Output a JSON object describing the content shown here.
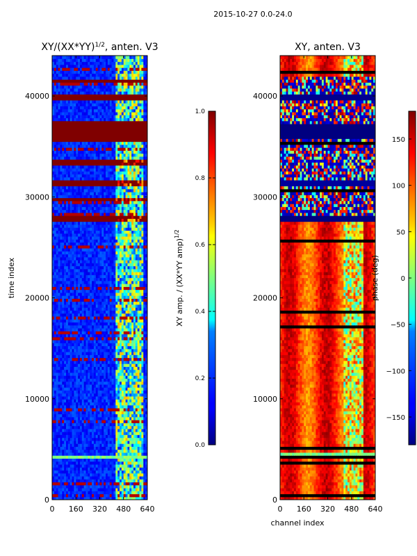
{
  "suptitle": "2015-10-27 0.0-24.0",
  "chart_data": [
    {
      "type": "heatmap",
      "title": "XY/(XX*YY)^1/2, anten. V3",
      "title_main": "XY/(XX*YY)",
      "title_exp": "1/2",
      "title_tail": ", anten. V3",
      "xlabel": "",
      "ylabel": "time index",
      "xlim": [
        0,
        640
      ],
      "ylim": [
        0,
        44000
      ],
      "xticks": [
        0,
        160,
        320,
        480,
        640
      ],
      "yticks": [
        0,
        10000,
        20000,
        30000,
        40000
      ],
      "colormap": "jet",
      "colorbar": {
        "label_main": "XY amp. / (XX*YY amp)",
        "label_exp": "1/2",
        "range": [
          0.0,
          1.0
        ],
        "ticks": [
          "0.0",
          "0.2",
          "0.4",
          "0.6",
          "0.8",
          "1.0"
        ]
      },
      "saturated_bands": [
        {
          "from": 27600,
          "to": 28300,
          "value": 1.0
        },
        {
          "from": 29500,
          "to": 29900,
          "value": 1.0
        },
        {
          "from": 31000,
          "to": 31800,
          "value": 1.0
        },
        {
          "from": 33200,
          "to": 33600,
          "value": 1.0
        },
        {
          "from": 35600,
          "to": 37400,
          "value": 1.0
        },
        {
          "from": 39700,
          "to": 40100,
          "value": 1.0
        },
        {
          "from": 41300,
          "to": 41600,
          "value": 1.0
        }
      ],
      "bright_band": {
        "from": 4100,
        "to": 4500,
        "value": 0.5
      },
      "active_channels": [
        420,
        620
      ]
    },
    {
      "type": "heatmap",
      "title": "XY, anten. V3",
      "xlabel": "channel index",
      "ylabel": "",
      "xlim": [
        0,
        640
      ],
      "ylim": [
        0,
        44000
      ],
      "xticks": [
        0,
        160,
        320,
        480,
        640
      ],
      "yticks": [
        0,
        10000,
        20000,
        30000,
        40000
      ],
      "colormap": "jet",
      "colorbar": {
        "label": "phase (deg)",
        "range": [
          -180,
          180
        ],
        "ticks": [
          "−150",
          "−100",
          "−50",
          "0",
          "50",
          "100",
          "150"
        ],
        "tick_values": [
          -150,
          -100,
          -50,
          0,
          50,
          100,
          150
        ]
      },
      "flagged_bands": [
        {
          "from": 35800,
          "to": 37300,
          "value": -180
        },
        {
          "from": 27600,
          "to": 28200,
          "value": -180
        },
        {
          "from": 31000,
          "to": 31700,
          "value": -170
        },
        {
          "from": 39700,
          "to": 40100,
          "value": -175
        }
      ],
      "dominant_phase_range": [
        100,
        170
      ]
    }
  ]
}
